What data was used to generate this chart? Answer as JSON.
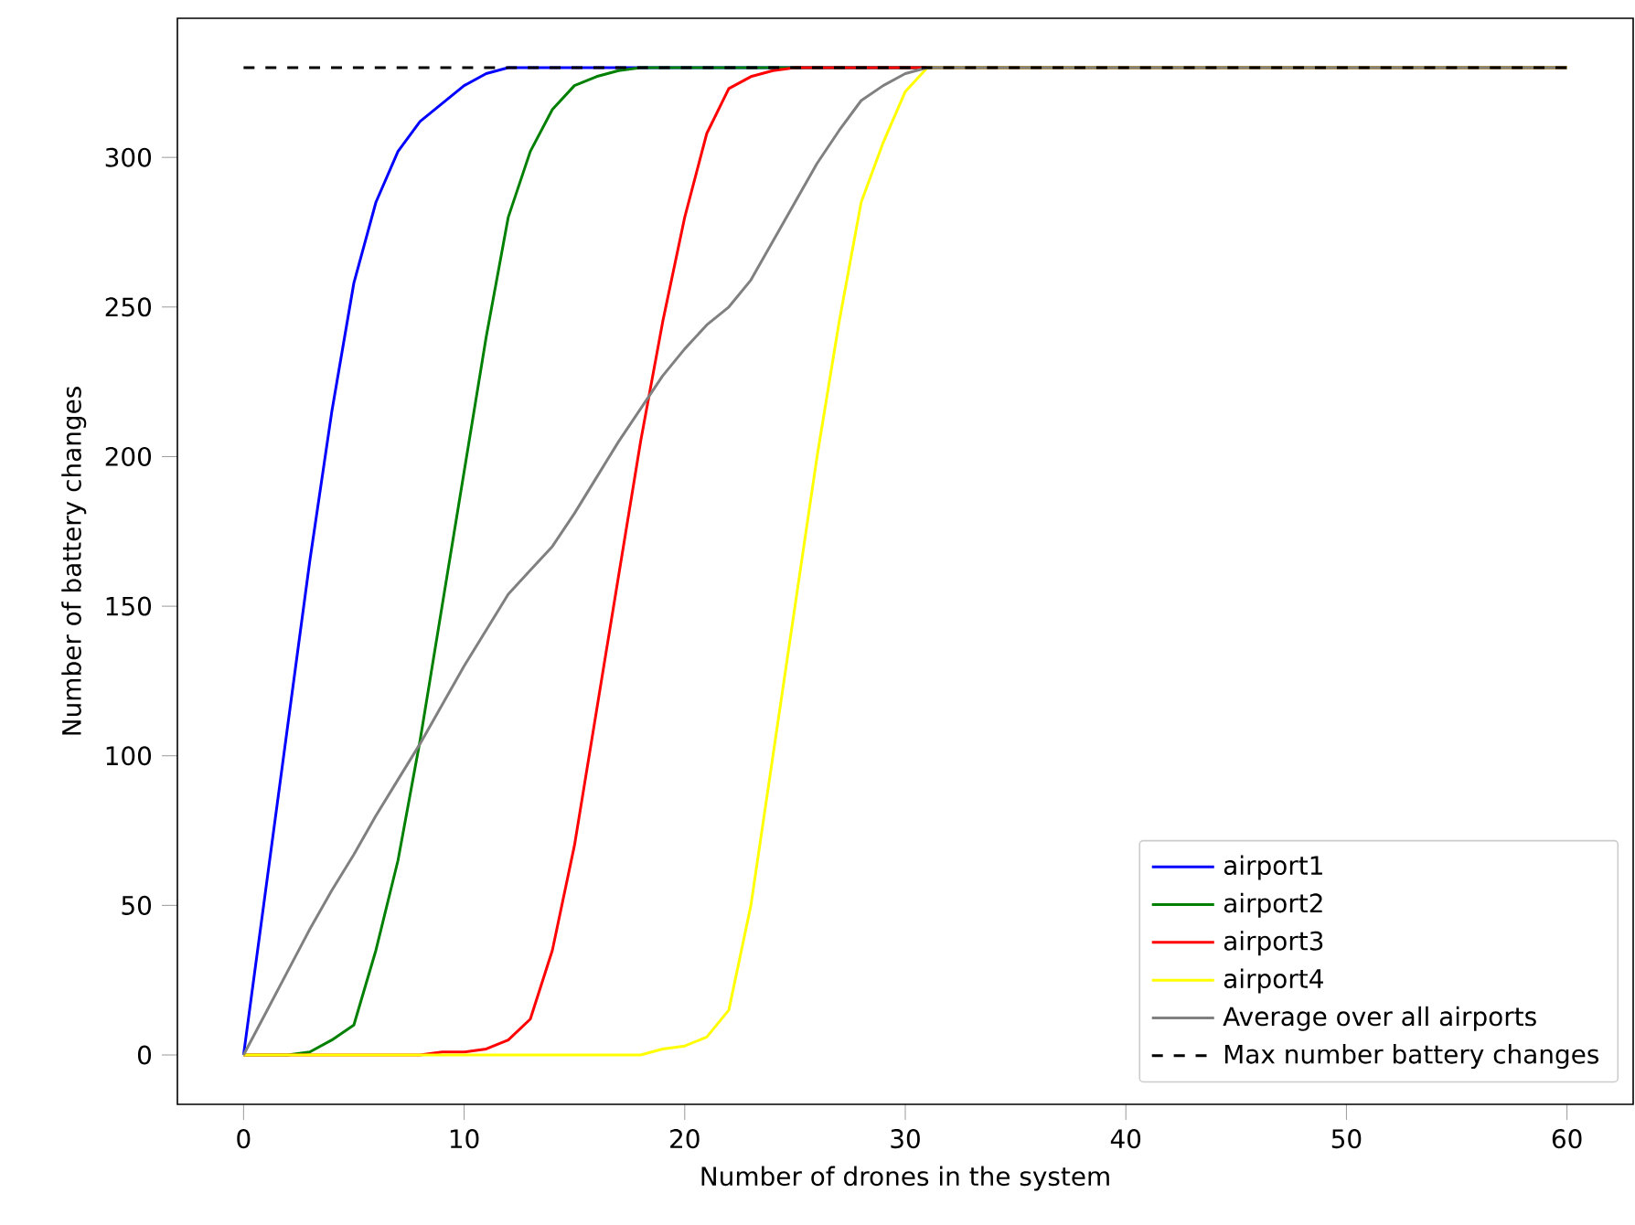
{
  "chart_data": {
    "type": "line",
    "xlabel": "Number of drones in the system",
    "ylabel": "Number of battery changes",
    "xlim": [
      -3,
      63
    ],
    "ylim": [
      -16.5,
      346.5
    ],
    "xticks": [
      0,
      10,
      20,
      30,
      40,
      50,
      60
    ],
    "yticks": [
      0,
      50,
      100,
      150,
      200,
      250,
      300
    ],
    "legend": "bottom right",
    "marker": "none",
    "series": [
      {
        "name": "airport1",
        "color": "#0000ff",
        "x": [
          0,
          1,
          2,
          3,
          4,
          5,
          6,
          7,
          8,
          9,
          10,
          11,
          12,
          60
        ],
        "values": [
          0,
          55,
          110,
          165,
          215,
          258,
          285,
          302,
          312,
          318,
          324,
          328,
          330,
          330
        ]
      },
      {
        "name": "airport2",
        "color": "#008000",
        "x": [
          0,
          1,
          2,
          3,
          4,
          5,
          6,
          7,
          8,
          9,
          10,
          11,
          12,
          13,
          14,
          15,
          16,
          17,
          18,
          60
        ],
        "values": [
          0,
          0,
          0,
          1,
          5,
          10,
          35,
          65,
          105,
          150,
          195,
          240,
          280,
          302,
          316,
          324,
          327,
          329,
          330,
          330
        ]
      },
      {
        "name": "airport3",
        "color": "#ff0000",
        "x": [
          0,
          8,
          9,
          10,
          11,
          12,
          13,
          14,
          15,
          16,
          17,
          18,
          19,
          20,
          21,
          22,
          23,
          24,
          25,
          60
        ],
        "values": [
          0,
          0,
          1,
          1,
          2,
          5,
          12,
          35,
          70,
          115,
          160,
          205,
          245,
          280,
          308,
          323,
          327,
          329,
          330,
          330
        ]
      },
      {
        "name": "airport4",
        "color": "#ffff00",
        "x": [
          0,
          18,
          19,
          20,
          21,
          22,
          23,
          24,
          25,
          26,
          27,
          28,
          29,
          30,
          31,
          60
        ],
        "values": [
          0,
          0,
          2,
          3,
          6,
          15,
          50,
          100,
          150,
          200,
          245,
          285,
          305,
          322,
          330,
          330
        ]
      },
      {
        "name": "Average over all airports",
        "color": "#808080",
        "x": [
          0,
          1,
          2,
          3,
          4,
          5,
          6,
          7,
          8,
          9,
          10,
          11,
          12,
          13,
          14,
          15,
          16,
          17,
          18,
          19,
          20,
          21,
          22,
          23,
          24,
          25,
          26,
          27,
          28,
          29,
          30,
          31,
          60
        ],
        "values": [
          0,
          14,
          28,
          42,
          55,
          67,
          80,
          92,
          104,
          117,
          130,
          142,
          154,
          162,
          170,
          181,
          193,
          205,
          216,
          227,
          236,
          244,
          250,
          259,
          272,
          285,
          298,
          309,
          319,
          324,
          328,
          330,
          330
        ]
      },
      {
        "name": "Max number battery changes",
        "color": "#000000",
        "line_style": "dashed",
        "x": [
          0,
          60
        ],
        "values": [
          330,
          330
        ]
      }
    ]
  }
}
